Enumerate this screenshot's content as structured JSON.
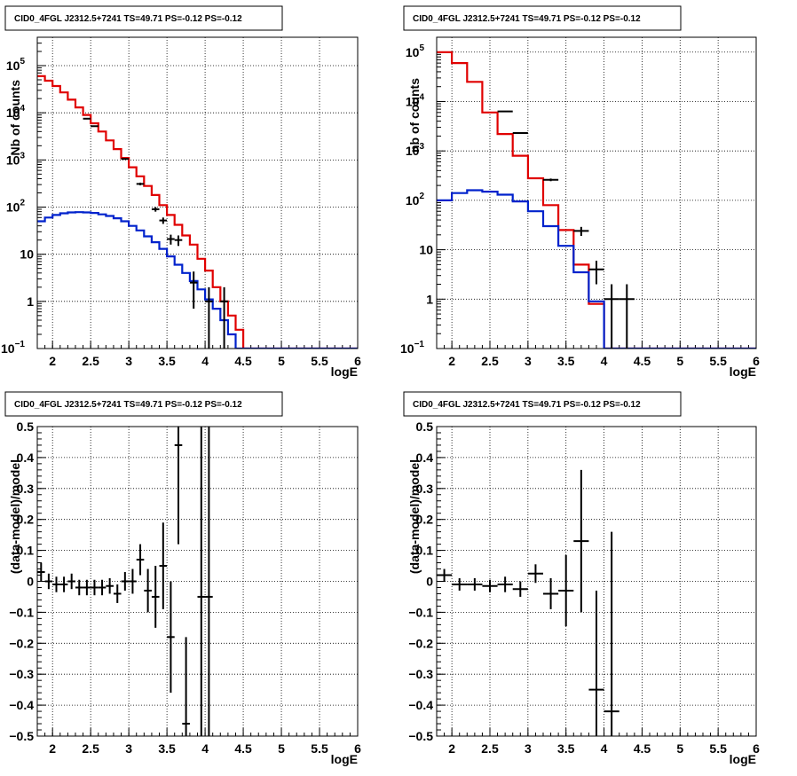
{
  "colors": {
    "total_model": "#e00000",
    "source_model": "#0022cc",
    "data": "#000000",
    "frame": "#000000"
  },
  "chart_data": [
    {
      "type": "histogram",
      "title": "CID0_4FGL J2312.5+7241 TS=49.71 PS=-0.12 PS=-0.12",
      "xlabel": "logE",
      "ylabel": "Nb of counts",
      "xlim": [
        1.8,
        6
      ],
      "ylim": [
        0.1,
        400000
      ],
      "yscale": "log",
      "grid": true,
      "x_ticks": [
        "2",
        "2.5",
        "3",
        "3.5",
        "4",
        "4.5",
        "5",
        "5.5",
        "6"
      ],
      "y_ticks": [
        {
          "value": 0.1,
          "base": "10",
          "exp": "−1"
        },
        {
          "value": 1,
          "base": "1",
          "exp": ""
        },
        {
          "value": 10,
          "base": "10",
          "exp": ""
        },
        {
          "value": 100,
          "base": "10",
          "exp": "2"
        },
        {
          "value": 1000,
          "base": "10",
          "exp": "3"
        },
        {
          "value": 10000,
          "base": "10",
          "exp": "4"
        },
        {
          "value": 100000,
          "base": "10",
          "exp": "5"
        }
      ],
      "bin_edges_start": 1.8,
      "bin_width": 0.1,
      "series": [
        {
          "role": "total_model",
          "values": [
            60000,
            48000,
            37000,
            27000,
            19000,
            13000,
            9000,
            6000,
            4000,
            2600,
            1700,
            1100,
            700,
            450,
            280,
            180,
            110,
            68,
            42,
            25,
            16,
            8,
            4.5,
            2,
            1,
            0.5,
            0.25,
            0.1,
            0.1,
            0.1,
            0.1,
            0.1,
            0.1,
            0.1,
            0.1,
            0.1,
            0.1,
            0.1,
            0.1,
            0.1,
            0.1,
            0.1
          ]
        },
        {
          "role": "source_model",
          "values": [
            50,
            60,
            68,
            74,
            77,
            78,
            77,
            75,
            70,
            65,
            58,
            50,
            40,
            32,
            24,
            18,
            13,
            9,
            6,
            4,
            2.7,
            1.8,
            1.1,
            0.7,
            0.4,
            0.2,
            0.1,
            0.1,
            0.1,
            0.1,
            0.1,
            0.1,
            0.1,
            0.1,
            0.1,
            0.1,
            0.1,
            0.1,
            0.1,
            0.1,
            0.1,
            0.1
          ]
        }
      ],
      "data_points": [
        {
          "x": 2.45,
          "y": 7500,
          "err": 90
        },
        {
          "x": 2.55,
          "y": 5200,
          "err": 75
        },
        {
          "x": 2.95,
          "y": 1050,
          "err": 35
        },
        {
          "x": 3.15,
          "y": 310,
          "err": 20
        },
        {
          "x": 3.35,
          "y": 90,
          "err": 10
        },
        {
          "x": 3.45,
          "y": 52,
          "err": 8
        },
        {
          "x": 3.55,
          "y": 21,
          "err": 5
        },
        {
          "x": 3.65,
          "y": 20,
          "err": 5
        },
        {
          "x": 3.85,
          "y": 2.5,
          "err": 1.8
        },
        {
          "x": 4.05,
          "y": 1,
          "err": 1
        },
        {
          "x": 4.25,
          "y": 1,
          "err": 1
        }
      ]
    },
    {
      "type": "histogram",
      "title": "CID0_4FGL J2312.5+7241 TS=49.71 PS=-0.12 PS=-0.12",
      "xlabel": "logE",
      "ylabel": "nb of counts",
      "xlim": [
        1.8,
        6
      ],
      "ylim": [
        0.1,
        200000
      ],
      "yscale": "log",
      "grid": true,
      "x_ticks": [
        "2",
        "2.5",
        "3",
        "3.5",
        "4",
        "4.5",
        "5",
        "5.5",
        "6"
      ],
      "y_ticks": [
        {
          "value": 0.1,
          "base": "10",
          "exp": "−1"
        },
        {
          "value": 1,
          "base": "1",
          "exp": ""
        },
        {
          "value": 10,
          "base": "10",
          "exp": ""
        },
        {
          "value": 100,
          "base": "10",
          "exp": "2"
        },
        {
          "value": 1000,
          "base": "10",
          "exp": "3"
        },
        {
          "value": 10000,
          "base": "10",
          "exp": "4"
        },
        {
          "value": 100000,
          "base": "10",
          "exp": "5"
        }
      ],
      "bin_edges_start": 1.8,
      "bin_width": 0.2,
      "series": [
        {
          "role": "total_model",
          "values": [
            100000,
            60000,
            25000,
            6000,
            2200,
            800,
            280,
            80,
            25,
            5,
            0.8,
            0.1,
            0.1,
            0.1,
            0.1,
            0.1,
            0.1,
            0.1,
            0.1,
            0.1,
            0.1
          ]
        },
        {
          "role": "source_model",
          "values": [
            100,
            140,
            160,
            150,
            130,
            95,
            60,
            30,
            12,
            3.5,
            0.9,
            0.1,
            0.1,
            0.1,
            0.1,
            0.1,
            0.1,
            0.1,
            0.1,
            0.1,
            0.1
          ]
        }
      ],
      "data_points": [
        {
          "x": 2.7,
          "y": 6300,
          "err": 80
        },
        {
          "x": 2.9,
          "y": 2300,
          "err": 48
        },
        {
          "x": 3.3,
          "y": 260,
          "err": 16
        },
        {
          "x": 3.7,
          "y": 24,
          "err": 5
        },
        {
          "x": 3.9,
          "y": 4,
          "err": 2
        },
        {
          "x": 4.1,
          "y": 1,
          "err": 1
        },
        {
          "x": 4.3,
          "y": 1,
          "err": 1
        }
      ]
    },
    {
      "type": "scatter",
      "title": "CID0_4FGL J2312.5+7241 TS=49.71 PS=-0.12 PS=-0.12",
      "xlabel": "logE",
      "ylabel": "(data-model)/model",
      "xlim": [
        1.8,
        6
      ],
      "ylim": [
        -0.5,
        0.5
      ],
      "grid": true,
      "x_ticks": [
        "2",
        "2.5",
        "3",
        "3.5",
        "4",
        "4.5",
        "5",
        "5.5",
        "6"
      ],
      "y_ticks": [
        "−0.5",
        "−0.4",
        "−0.3",
        "−0.2",
        "−0.1",
        "0",
        "0.1",
        "0.2",
        "0.3",
        "0.4",
        "0.5"
      ],
      "y_tick_values": [
        -0.5,
        -0.4,
        -0.3,
        -0.2,
        -0.1,
        0,
        0.1,
        0.2,
        0.3,
        0.4,
        0.5
      ],
      "x_halfwidth": 0.05,
      "data_points": [
        {
          "x": 1.85,
          "y": 0.03,
          "err": 0.03
        },
        {
          "x": 1.95,
          "y": 0.0,
          "err": 0.025
        },
        {
          "x": 2.05,
          "y": -0.01,
          "err": 0.025
        },
        {
          "x": 2.15,
          "y": -0.01,
          "err": 0.025
        },
        {
          "x": 2.25,
          "y": 0.0,
          "err": 0.025
        },
        {
          "x": 2.35,
          "y": -0.02,
          "err": 0.025
        },
        {
          "x": 2.45,
          "y": -0.02,
          "err": 0.025
        },
        {
          "x": 2.55,
          "y": -0.02,
          "err": 0.025
        },
        {
          "x": 2.65,
          "y": -0.02,
          "err": 0.025
        },
        {
          "x": 2.75,
          "y": -0.015,
          "err": 0.025
        },
        {
          "x": 2.85,
          "y": -0.04,
          "err": 0.03
        },
        {
          "x": 2.95,
          "y": 0.0,
          "err": 0.03
        },
        {
          "x": 3.05,
          "y": 0.0,
          "err": 0.04
        },
        {
          "x": 3.15,
          "y": 0.07,
          "err": 0.05
        },
        {
          "x": 3.25,
          "y": -0.03,
          "err": 0.07
        },
        {
          "x": 3.35,
          "y": -0.05,
          "err": 0.1
        },
        {
          "x": 3.45,
          "y": 0.05,
          "err": 0.14
        },
        {
          "x": 3.55,
          "y": -0.18,
          "err": 0.18
        },
        {
          "x": 3.65,
          "y": 0.44,
          "err": 0.32
        },
        {
          "x": 3.75,
          "y": -0.46,
          "err": 0.28
        },
        {
          "x": 3.95,
          "y": -0.05,
          "err": 0.8
        },
        {
          "x": 4.05,
          "y": -0.05,
          "err": 0.8
        }
      ]
    },
    {
      "type": "scatter",
      "title": "CID0_4FGL J2312.5+7241 TS=49.71 PS=-0.12 PS=-0.12",
      "xlabel": "logE",
      "ylabel": "(data-model)/model",
      "xlim": [
        1.8,
        6
      ],
      "ylim": [
        -0.5,
        0.5
      ],
      "grid": true,
      "x_ticks": [
        "2",
        "2.5",
        "3",
        "3.5",
        "4",
        "4.5",
        "5",
        "5.5",
        "6"
      ],
      "y_ticks": [
        "−0.5",
        "−0.4",
        "−0.3",
        "−0.2",
        "−0.1",
        "0",
        "0.1",
        "0.2",
        "0.3",
        "0.4",
        "0.5"
      ],
      "y_tick_values": [
        -0.5,
        -0.4,
        -0.3,
        -0.2,
        -0.1,
        0,
        0.1,
        0.2,
        0.3,
        0.4,
        0.5
      ],
      "x_halfwidth": 0.1,
      "data_points": [
        {
          "x": 1.9,
          "y": 0.02,
          "err": 0.02
        },
        {
          "x": 2.1,
          "y": -0.01,
          "err": 0.02
        },
        {
          "x": 2.3,
          "y": -0.01,
          "err": 0.02
        },
        {
          "x": 2.5,
          "y": -0.015,
          "err": 0.02
        },
        {
          "x": 2.7,
          "y": -0.01,
          "err": 0.025
        },
        {
          "x": 2.9,
          "y": -0.025,
          "err": 0.025
        },
        {
          "x": 3.1,
          "y": 0.025,
          "err": 0.03
        },
        {
          "x": 3.3,
          "y": -0.04,
          "err": 0.05
        },
        {
          "x": 3.5,
          "y": -0.03,
          "err": 0.115
        },
        {
          "x": 3.7,
          "y": 0.13,
          "err": 0.23
        },
        {
          "x": 3.9,
          "y": -0.35,
          "err": 0.32
        },
        {
          "x": 4.1,
          "y": -0.42,
          "err": 0.58
        }
      ]
    }
  ]
}
